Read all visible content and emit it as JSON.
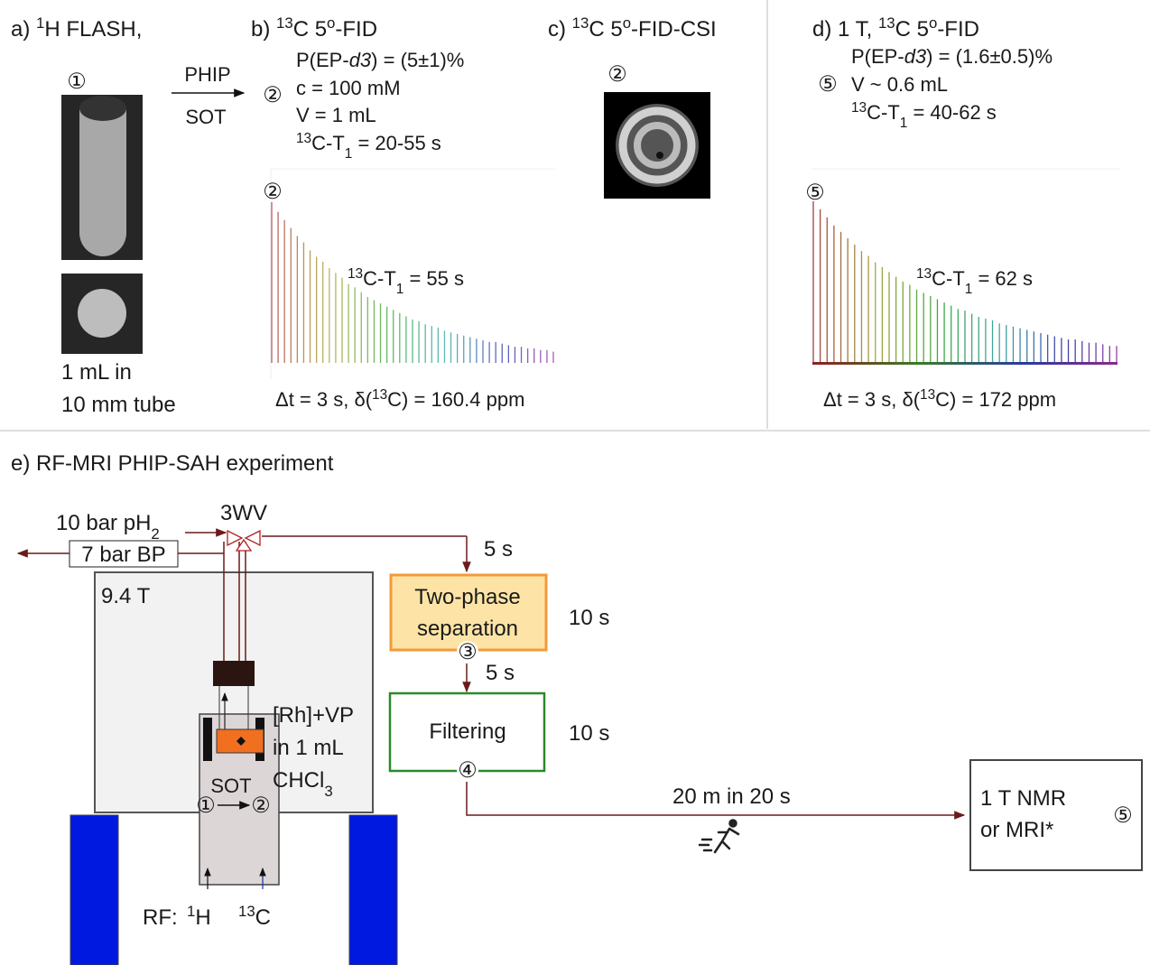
{
  "panel_a": {
    "title": [
      {
        "text": "a) "
      },
      {
        "text": "1",
        "sup": true
      },
      {
        "text": "H FLASH,"
      }
    ],
    "marker": "①",
    "caption": [
      "1 mL in",
      "10 mm tube"
    ],
    "arrow_top": "PHIP",
    "arrow_bottom": "SOT"
  },
  "panel_b": {
    "title": [
      {
        "text": "b) "
      },
      {
        "text": "13",
        "sup": true
      },
      {
        "text": "C 5"
      },
      {
        "text": "o",
        "sup": true
      },
      {
        "text": "-FID"
      }
    ],
    "marker": "②",
    "params": [
      [
        {
          "text": "P(EP-"
        },
        {
          "text": "d3",
          "italic": true
        },
        {
          "text": ") = (5±1)%"
        }
      ],
      [
        {
          "text": "c = 100 mM"
        }
      ],
      [
        {
          "text": "V = 1 mL"
        }
      ],
      [
        {
          "text": "13",
          "sup": true
        },
        {
          "text": "C-T"
        },
        {
          "text": "1",
          "sub": true
        },
        {
          "text": " = 20-55 s"
        }
      ]
    ],
    "fid": {
      "marker": "②",
      "amplitudes": [
        100,
        94,
        89,
        84,
        79,
        75,
        70,
        66,
        63,
        59,
        56,
        53,
        49,
        47,
        44,
        41,
        39,
        37,
        35,
        33,
        31,
        29,
        27,
        26,
        24,
        23,
        22,
        20,
        19,
        18,
        17,
        16,
        15,
        14,
        13,
        13,
        12,
        11,
        10,
        10,
        9,
        9,
        8,
        8,
        7
      ],
      "label": [
        {
          "text": "13",
          "sup": true
        },
        {
          "text": "C-T"
        },
        {
          "text": "1",
          "sub": true
        },
        {
          "text": " = 55 s"
        }
      ],
      "caption": [
        {
          "text": "Δt = 3 s, δ("
        },
        {
          "text": "13",
          "sup": true
        },
        {
          "text": "C) = 160.4 ppm"
        }
      ]
    }
  },
  "panel_c": {
    "title": [
      {
        "text": "c) "
      },
      {
        "text": "13",
        "sup": true
      },
      {
        "text": "C 5"
      },
      {
        "text": "o",
        "sup": true
      },
      {
        "text": "-FID-CSI"
      }
    ],
    "marker": "②"
  },
  "panel_d": {
    "title": [
      {
        "text": "d) 1 T, "
      },
      {
        "text": "13",
        "sup": true
      },
      {
        "text": "C 5"
      },
      {
        "text": "o",
        "sup": true
      },
      {
        "text": "-FID"
      }
    ],
    "marker": "⑤",
    "params": [
      [
        {
          "text": "P(EP-"
        },
        {
          "text": "d3",
          "italic": true
        },
        {
          "text": ") = (1.6±0.5)%"
        }
      ],
      [
        {
          "text": "V ~ 0.6 mL"
        }
      ],
      [
        {
          "text": "13",
          "sup": true
        },
        {
          "text": "C-T"
        },
        {
          "text": "1",
          "sub": true
        },
        {
          "text": " = 40-62 s"
        }
      ]
    ],
    "fid": {
      "marker": "⑤",
      "amplitudes": [
        100,
        95,
        90,
        85,
        81,
        77,
        73,
        69,
        66,
        62,
        59,
        56,
        53,
        50,
        48,
        45,
        43,
        41,
        39,
        37,
        35,
        33,
        32,
        30,
        28,
        27,
        26,
        24,
        23,
        22,
        21,
        20,
        19,
        18,
        17,
        16,
        15,
        14,
        14,
        13,
        12,
        12,
        11,
        10,
        10
      ],
      "label": [
        {
          "text": "13",
          "sup": true
        },
        {
          "text": "C-T"
        },
        {
          "text": "1",
          "sub": true
        },
        {
          "text": " = 62 s"
        }
      ],
      "caption": [
        {
          "text": "Δt = 3 s, δ("
        },
        {
          "text": "13",
          "sup": true
        },
        {
          "text": "C) = 172 ppm"
        }
      ]
    }
  },
  "panel_e": {
    "title": "e) RF-MRI PHIP-SAH experiment",
    "inlet": [
      {
        "text": "10 bar pH"
      },
      {
        "text": "2",
        "sub": true
      }
    ],
    "back_pressure": "7 bar BP",
    "valve": "3WV",
    "field": "9.4 T",
    "sample": [
      [
        {
          "text": "[Rh]+VP"
        }
      ],
      [
        {
          "text": "in 1 mL"
        }
      ],
      [
        {
          "text": "CHCl"
        },
        {
          "text": "3",
          "sub": true
        }
      ]
    ],
    "sot": "SOT",
    "transfer": [
      "①",
      "②"
    ],
    "rf_label": "RF:",
    "rf_1h": [
      {
        "text": "1",
        "sup": true
      },
      {
        "text": "H"
      }
    ],
    "rf_13c": [
      {
        "text": "13",
        "sup": true
      },
      {
        "text": "C"
      }
    ],
    "transfer_1": "5 s",
    "separation": {
      "lines": [
        "Two-phase",
        "separation"
      ],
      "duration": "10 s",
      "marker": "③"
    },
    "transfer_2": "5 s",
    "filtering": {
      "lines": [
        "Filtering"
      ],
      "duration": "10 s",
      "marker": "④"
    },
    "transport": "20 m in 20 s",
    "destination": {
      "lines": [
        "1 T NMR",
        "or MRI*"
      ],
      "marker": "⑤"
    }
  }
}
